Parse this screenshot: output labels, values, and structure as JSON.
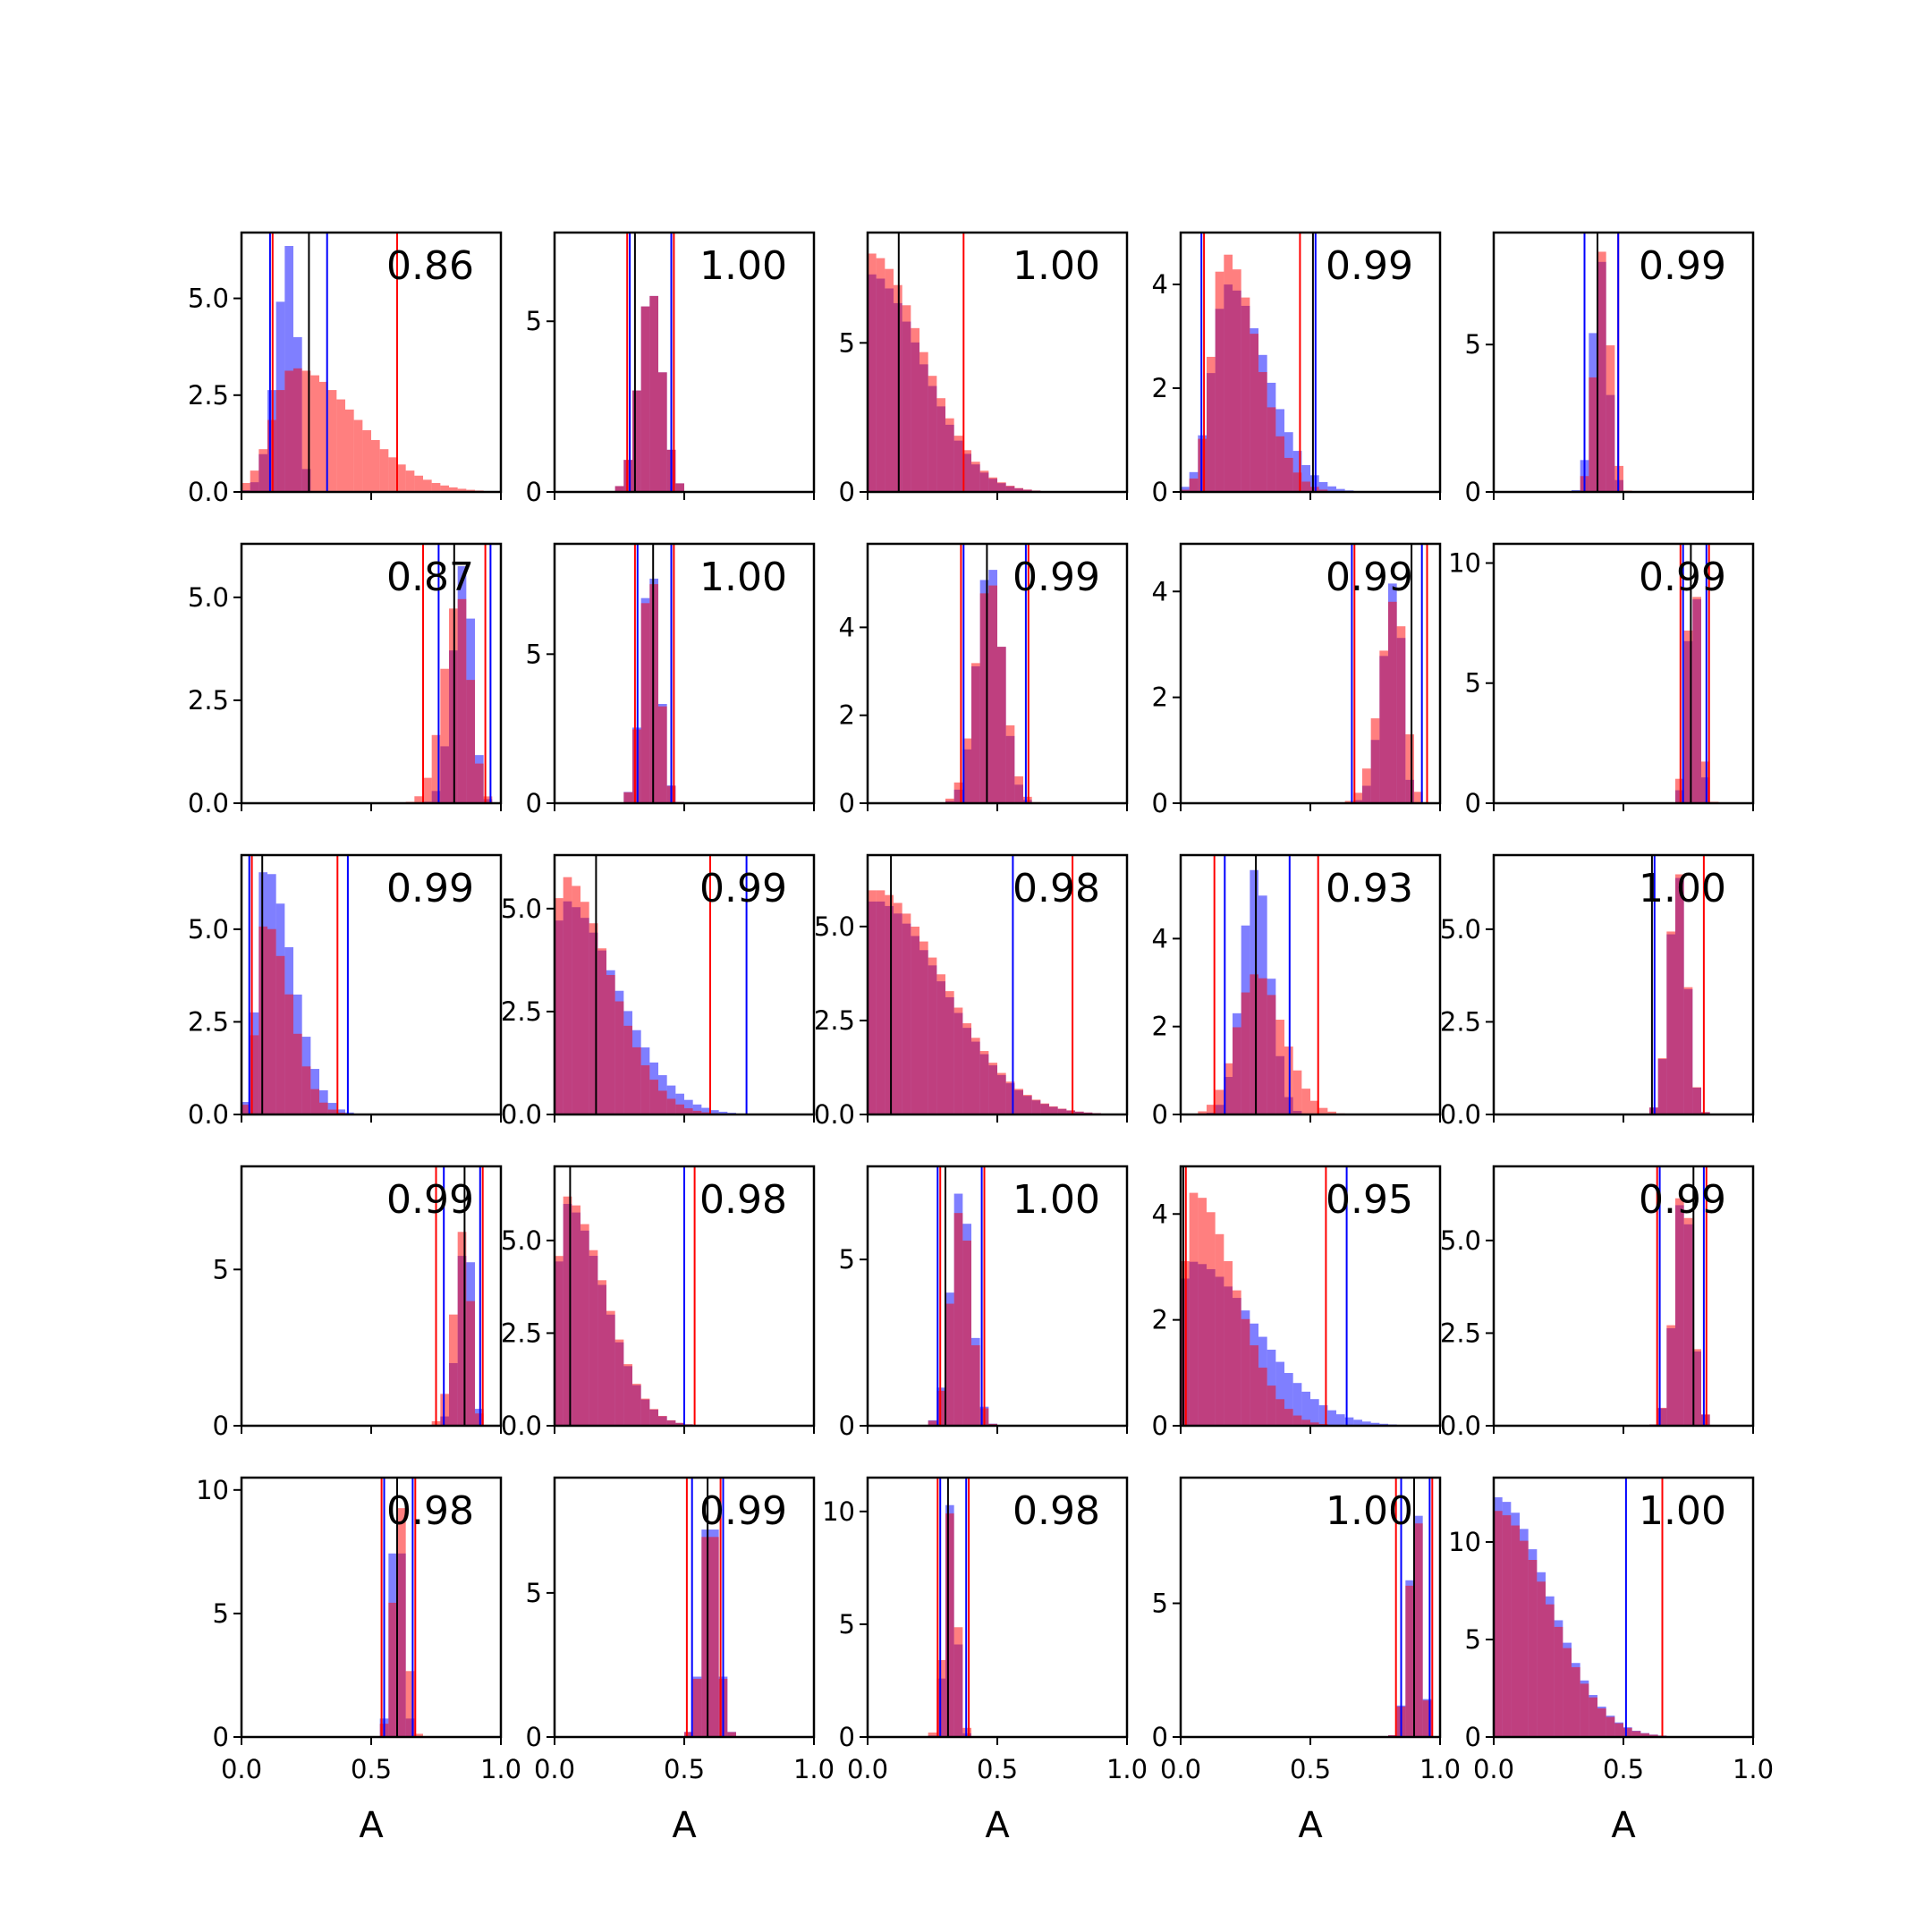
{
  "chart_data": {
    "type": "histogram-grid",
    "rows": 5,
    "cols": 5,
    "xlabel": "A",
    "xlim": [
      0.0,
      1.0
    ],
    "xticks": [
      "0.0",
      "0.5",
      "1.0"
    ],
    "colors": {
      "blue": "#0000ff",
      "red": "#ff0000",
      "black": "#000000",
      "blue_fill_alpha": 0.5,
      "red_fill_alpha": 0.5
    },
    "panels": [
      {
        "annotation": "0.86",
        "ylim": [
          0,
          6.7
        ],
        "yticks": [
          "0.0",
          "2.5",
          "5.0"
        ],
        "ytick_values": [
          0,
          2.5,
          5.0
        ],
        "blue": {
          "center": 0.19,
          "spread": 0.055,
          "skew": 0.5,
          "peak": 6.4
        },
        "red": {
          "center": 0.2,
          "spread": 0.08,
          "skew": 3.0,
          "peak": 3.2
        },
        "lines": {
          "red": [
            0.12,
            0.6
          ],
          "blue": [
            0.11,
            0.33
          ],
          "black": [
            0.26
          ]
        }
      },
      {
        "annotation": "1.00",
        "ylim": [
          0,
          7.6
        ],
        "yticks": [
          "0",
          "5"
        ],
        "ytick_values": [
          0,
          5
        ],
        "blue": {
          "center": 0.37,
          "spread": 0.045,
          "skew": 1.0,
          "peak": 6.0
        },
        "red": {
          "center": 0.37,
          "spread": 0.045,
          "skew": 1.0,
          "peak": 6.0
        },
        "lines": {
          "red": [
            0.28,
            0.46
          ],
          "blue": [
            0.29,
            0.45
          ],
          "black": [
            0.31
          ]
        }
      },
      {
        "annotation": "1.00",
        "ylim": [
          0,
          8.7
        ],
        "yticks": [
          "0",
          "5"
        ],
        "ytick_values": [
          0,
          5
        ],
        "blue": {
          "center": 0.01,
          "spread": 0.04,
          "skew": 5.0,
          "peak": 7.3
        },
        "red": {
          "center": 0.01,
          "spread": 0.04,
          "skew": 5.0,
          "peak": 8.0
        },
        "lines": {
          "red": [
            0.37
          ],
          "blue": [
            0.0
          ],
          "black": [
            0.12
          ]
        }
      },
      {
        "annotation": "0.99",
        "ylim": [
          0,
          5.0
        ],
        "yticks": [
          "0",
          "2",
          "4"
        ],
        "ytick_values": [
          0,
          2,
          4
        ],
        "blue": {
          "center": 0.18,
          "spread": 0.06,
          "skew": 2.5,
          "peak": 4.0
        },
        "red": {
          "center": 0.17,
          "spread": 0.05,
          "skew": 2.5,
          "peak": 4.6
        },
        "lines": {
          "red": [
            0.09,
            0.46
          ],
          "blue": [
            0.08,
            0.52
          ],
          "black": [
            0.51
          ]
        }
      },
      {
        "annotation": "0.99",
        "ylim": [
          0,
          8.8
        ],
        "yticks": [
          "0",
          "5"
        ],
        "ytick_values": [
          0,
          5
        ],
        "blue": {
          "center": 0.41,
          "spread": 0.03,
          "skew": 1.0,
          "peak": 8.0
        },
        "red": {
          "center": 0.42,
          "spread": 0.03,
          "skew": 1.0,
          "peak": 8.2
        },
        "lines": {
          "red": [
            0.35,
            0.48
          ],
          "blue": [
            0.35,
            0.48
          ],
          "black": [
            0.4
          ]
        }
      },
      {
        "annotation": "0.87",
        "ylim": [
          0,
          6.3
        ],
        "yticks": [
          "0.0",
          "2.5",
          "5.0"
        ],
        "ytick_values": [
          0,
          2.5,
          5.0
        ],
        "blue": {
          "center": 0.86,
          "spread": 0.045,
          "skew": 0.7,
          "peak": 5.9
        },
        "red": {
          "center": 0.84,
          "spread": 0.06,
          "skew": 0.7,
          "peak": 5.1
        },
        "lines": {
          "red": [
            0.7,
            0.94
          ],
          "blue": [
            0.76,
            0.96
          ],
          "black": [
            0.82
          ]
        }
      },
      {
        "annotation": "1.00",
        "ylim": [
          0,
          8.7
        ],
        "yticks": [
          "0",
          "5"
        ],
        "ytick_values": [
          0,
          5
        ],
        "blue": {
          "center": 0.37,
          "spread": 0.035,
          "skew": 1.0,
          "peak": 8.1
        },
        "red": {
          "center": 0.37,
          "spread": 0.035,
          "skew": 1.0,
          "peak": 7.9
        },
        "lines": {
          "red": [
            0.31,
            0.46
          ],
          "blue": [
            0.32,
            0.45
          ],
          "black": [
            0.38
          ]
        }
      },
      {
        "annotation": "0.99",
        "ylim": [
          0,
          5.9
        ],
        "yticks": [
          "0",
          "2",
          "4"
        ],
        "ytick_values": [
          0,
          2,
          4
        ],
        "blue": {
          "center": 0.47,
          "spread": 0.05,
          "skew": 1.0,
          "peak": 5.5
        },
        "red": {
          "center": 0.47,
          "spread": 0.055,
          "skew": 1.0,
          "peak": 5.1
        },
        "lines": {
          "red": [
            0.36,
            0.62
          ],
          "blue": [
            0.37,
            0.61
          ],
          "black": [
            0.46
          ]
        }
      },
      {
        "annotation": "0.99",
        "ylim": [
          0,
          4.9
        ],
        "yticks": [
          "0",
          "2",
          "4"
        ],
        "ytick_values": [
          0,
          2,
          4
        ],
        "blue": {
          "center": 0.83,
          "spread": 0.05,
          "skew": 0.5,
          "peak": 4.3
        },
        "red": {
          "center": 0.83,
          "spread": 0.06,
          "skew": 0.6,
          "peak": 3.9
        },
        "lines": {
          "red": [
            0.67,
            0.95
          ],
          "blue": [
            0.66,
            0.93
          ],
          "black": [
            0.89
          ]
        }
      },
      {
        "annotation": "0.99",
        "ylim": [
          0,
          10.8
        ],
        "yticks": [
          "0",
          "5",
          "10"
        ],
        "ytick_values": [
          0,
          5,
          10
        ],
        "blue": {
          "center": 0.77,
          "spread": 0.022,
          "skew": 1.0,
          "peak": 10.2
        },
        "red": {
          "center": 0.77,
          "spread": 0.025,
          "skew": 1.0,
          "peak": 9.9
        },
        "lines": {
          "red": [
            0.72,
            0.83
          ],
          "blue": [
            0.73,
            0.82
          ],
          "black": [
            0.76
          ]
        }
      },
      {
        "annotation": "0.99",
        "ylim": [
          0,
          7.0
        ],
        "yticks": [
          "0.0",
          "2.5",
          "5.0"
        ],
        "ytick_values": [
          0,
          2.5,
          5.0
        ],
        "blue": {
          "center": 0.09,
          "spread": 0.03,
          "skew": 3.5,
          "peak": 6.7
        },
        "red": {
          "center": 0.09,
          "spread": 0.03,
          "skew": 3.2,
          "peak": 5.2
        },
        "lines": {
          "red": [
            0.04,
            0.37
          ],
          "blue": [
            0.03,
            0.41
          ],
          "black": [
            0.08
          ]
        }
      },
      {
        "annotation": "0.99",
        "ylim": [
          0,
          6.3
        ],
        "yticks": [
          "0.0",
          "2.5",
          "5.0"
        ],
        "ytick_values": [
          0,
          2.5,
          5.0
        ],
        "blue": {
          "center": 0.03,
          "spread": 0.03,
          "skew": 7.0,
          "peak": 5.2
        },
        "red": {
          "center": 0.03,
          "spread": 0.03,
          "skew": 6.0,
          "peak": 5.8
        },
        "lines": {
          "red": [
            0.6
          ],
          "blue": [
            0.74
          ],
          "black": [
            0.16
          ]
        }
      },
      {
        "annotation": "0.98",
        "ylim": [
          0,
          6.9
        ],
        "yticks": [
          "0.0",
          "2.5",
          "5.0"
        ],
        "ytick_values": [
          0,
          2.5,
          5.0
        ],
        "blue": {
          "center": 0.02,
          "spread": 0.03,
          "skew": 9.0,
          "peak": 5.7
        },
        "red": {
          "center": 0.02,
          "spread": 0.03,
          "skew": 9.0,
          "peak": 6.0
        },
        "lines": {
          "red": [
            0.79
          ],
          "blue": [
            0.56
          ],
          "black": [
            0.09
          ]
        }
      },
      {
        "annotation": "0.93",
        "ylim": [
          0,
          5.9
        ],
        "yticks": [
          "0",
          "2",
          "4"
        ],
        "ytick_values": [
          0,
          2,
          4
        ],
        "blue": {
          "center": 0.29,
          "spread": 0.055,
          "skew": 1.0,
          "peak": 5.6
        },
        "red": {
          "center": 0.29,
          "spread": 0.075,
          "skew": 1.4,
          "peak": 3.2
        },
        "lines": {
          "red": [
            0.13,
            0.53
          ],
          "blue": [
            0.17,
            0.42
          ],
          "black": [
            0.29
          ]
        }
      },
      {
        "annotation": "1.00",
        "ylim": [
          0,
          7.0
        ],
        "yticks": [
          "0.0",
          "2.5",
          "5.0"
        ],
        "ytick_values": [
          0,
          2.5,
          5.0
        ],
        "blue": {
          "center": 0.71,
          "spread": 0.035,
          "skew": 1.0,
          "peak": 6.5
        },
        "red": {
          "center": 0.71,
          "spread": 0.035,
          "skew": 1.0,
          "peak": 6.6
        },
        "lines": {
          "red": [
            0.81
          ],
          "blue": [
            0.62
          ],
          "black": [
            0.61
          ]
        }
      },
      {
        "annotation": "0.99",
        "ylim": [
          0,
          8.3
        ],
        "yticks": [
          "0",
          "5"
        ],
        "ytick_values": [
          0,
          5
        ],
        "blue": {
          "center": 0.87,
          "spread": 0.035,
          "skew": 0.6,
          "peak": 6.4
        },
        "red": {
          "center": 0.86,
          "spread": 0.04,
          "skew": 0.6,
          "peak": 6.4
        },
        "lines": {
          "red": [
            0.75,
            0.93
          ],
          "blue": [
            0.78,
            0.92
          ],
          "black": [
            0.86
          ]
        }
      },
      {
        "annotation": "0.98",
        "ylim": [
          0,
          7.0
        ],
        "yticks": [
          "0.0",
          "2.5",
          "5.0"
        ],
        "ytick_values": [
          0,
          2.5,
          5.0
        ],
        "blue": {
          "center": 0.04,
          "spread": 0.03,
          "skew": 5.0,
          "peak": 6.0
        },
        "red": {
          "center": 0.04,
          "spread": 0.03,
          "skew": 5.0,
          "peak": 6.2
        },
        "lines": {
          "red": [
            0.54
          ],
          "blue": [
            0.5
          ],
          "black": [
            0.06
          ]
        }
      },
      {
        "annotation": "1.00",
        "ylim": [
          0,
          7.8
        ],
        "yticks": [
          "0",
          "5"
        ],
        "ytick_values": [
          0,
          5
        ],
        "blue": {
          "center": 0.36,
          "spread": 0.04,
          "skew": 1.0,
          "peak": 7.2
        },
        "red": {
          "center": 0.36,
          "spread": 0.04,
          "skew": 1.0,
          "peak": 6.6
        },
        "lines": {
          "red": [
            0.28,
            0.45
          ],
          "blue": [
            0.27,
            0.44
          ],
          "black": [
            0.3
          ]
        }
      },
      {
        "annotation": "0.95",
        "ylim": [
          0,
          4.9
        ],
        "yticks": [
          "0",
          "2",
          "4"
        ],
        "ytick_values": [
          0,
          2,
          4
        ],
        "blue": {
          "center": 0.04,
          "spread": 0.05,
          "skew": 5.0,
          "peak": 3.1
        },
        "red": {
          "center": 0.05,
          "spread": 0.04,
          "skew": 4.0,
          "peak": 4.4
        },
        "lines": {
          "red": [
            0.02,
            0.56
          ],
          "blue": [
            0.64
          ],
          "black": [
            0.01
          ]
        }
      },
      {
        "annotation": "0.99",
        "ylim": [
          0,
          7.0
        ],
        "yticks": [
          "0.0",
          "2.5",
          "5.0"
        ],
        "ytick_values": [
          0,
          2.5,
          5.0
        ],
        "blue": {
          "center": 0.73,
          "spread": 0.035,
          "skew": 1.0,
          "peak": 6.4
        },
        "red": {
          "center": 0.73,
          "spread": 0.035,
          "skew": 1.0,
          "peak": 6.6
        },
        "lines": {
          "red": [
            0.63,
            0.82
          ],
          "blue": [
            0.64,
            0.81
          ],
          "black": [
            0.77
          ]
        }
      },
      {
        "annotation": "0.98",
        "ylim": [
          0,
          10.5
        ],
        "yticks": [
          "0",
          "5",
          "10"
        ],
        "ytick_values": [
          0,
          5,
          10
        ],
        "blue": {
          "center": 0.6,
          "spread": 0.022,
          "skew": 1.0,
          "peak": 9.9
        },
        "red": {
          "center": 0.61,
          "spread": 0.025,
          "skew": 1.0,
          "peak": 9.6
        },
        "lines": {
          "red": [
            0.54,
            0.67
          ],
          "blue": [
            0.55,
            0.66
          ],
          "black": [
            0.6
          ]
        }
      },
      {
        "annotation": "0.99",
        "ylim": [
          0,
          9.0
        ],
        "yticks": [
          "0",
          "5"
        ],
        "ytick_values": [
          0,
          5
        ],
        "blue": {
          "center": 0.6,
          "spread": 0.03,
          "skew": 1.0,
          "peak": 8.4
        },
        "red": {
          "center": 0.6,
          "spread": 0.03,
          "skew": 1.0,
          "peak": 8.1
        },
        "lines": {
          "red": [
            0.51,
            0.64
          ],
          "blue": [
            0.53,
            0.65
          ],
          "black": [
            0.59
          ]
        }
      },
      {
        "annotation": "0.98",
        "ylim": [
          0,
          11.5
        ],
        "yticks": [
          "0",
          "5",
          "10"
        ],
        "ytick_values": [
          0,
          5,
          10
        ],
        "blue": {
          "center": 0.32,
          "spread": 0.022,
          "skew": 1.0,
          "peak": 10.4
        },
        "red": {
          "center": 0.32,
          "spread": 0.025,
          "skew": 1.0,
          "peak": 10.0
        },
        "lines": {
          "red": [
            0.27,
            0.39
          ],
          "blue": [
            0.28,
            0.38
          ],
          "black": [
            0.31
          ]
        }
      },
      {
        "annotation": "1.00",
        "ylim": [
          0,
          9.7
        ],
        "yticks": [
          "0",
          "5"
        ],
        "ytick_values": [
          0,
          5
        ],
        "blue": {
          "center": 0.91,
          "spread": 0.03,
          "skew": 0.7,
          "peak": 8.7
        },
        "red": {
          "center": 0.91,
          "spread": 0.03,
          "skew": 0.7,
          "peak": 8.4
        },
        "lines": {
          "red": [
            0.83,
            0.97
          ],
          "blue": [
            0.85,
            0.96
          ],
          "black": [
            0.9
          ]
        }
      },
      {
        "annotation": "1.00",
        "ylim": [
          0,
          13.3
        ],
        "yticks": [
          "0",
          "5",
          "10"
        ],
        "ytick_values": [
          0,
          5,
          10
        ],
        "blue": {
          "center": 0.01,
          "spread": 0.025,
          "skew": 8.0,
          "peak": 12.3
        },
        "red": {
          "center": 0.01,
          "spread": 0.025,
          "skew": 8.0,
          "peak": 11.6
        },
        "lines": {
          "red": [
            0.65
          ],
          "blue": [
            0.51
          ],
          "black": [
            0.0
          ]
        }
      }
    ]
  }
}
